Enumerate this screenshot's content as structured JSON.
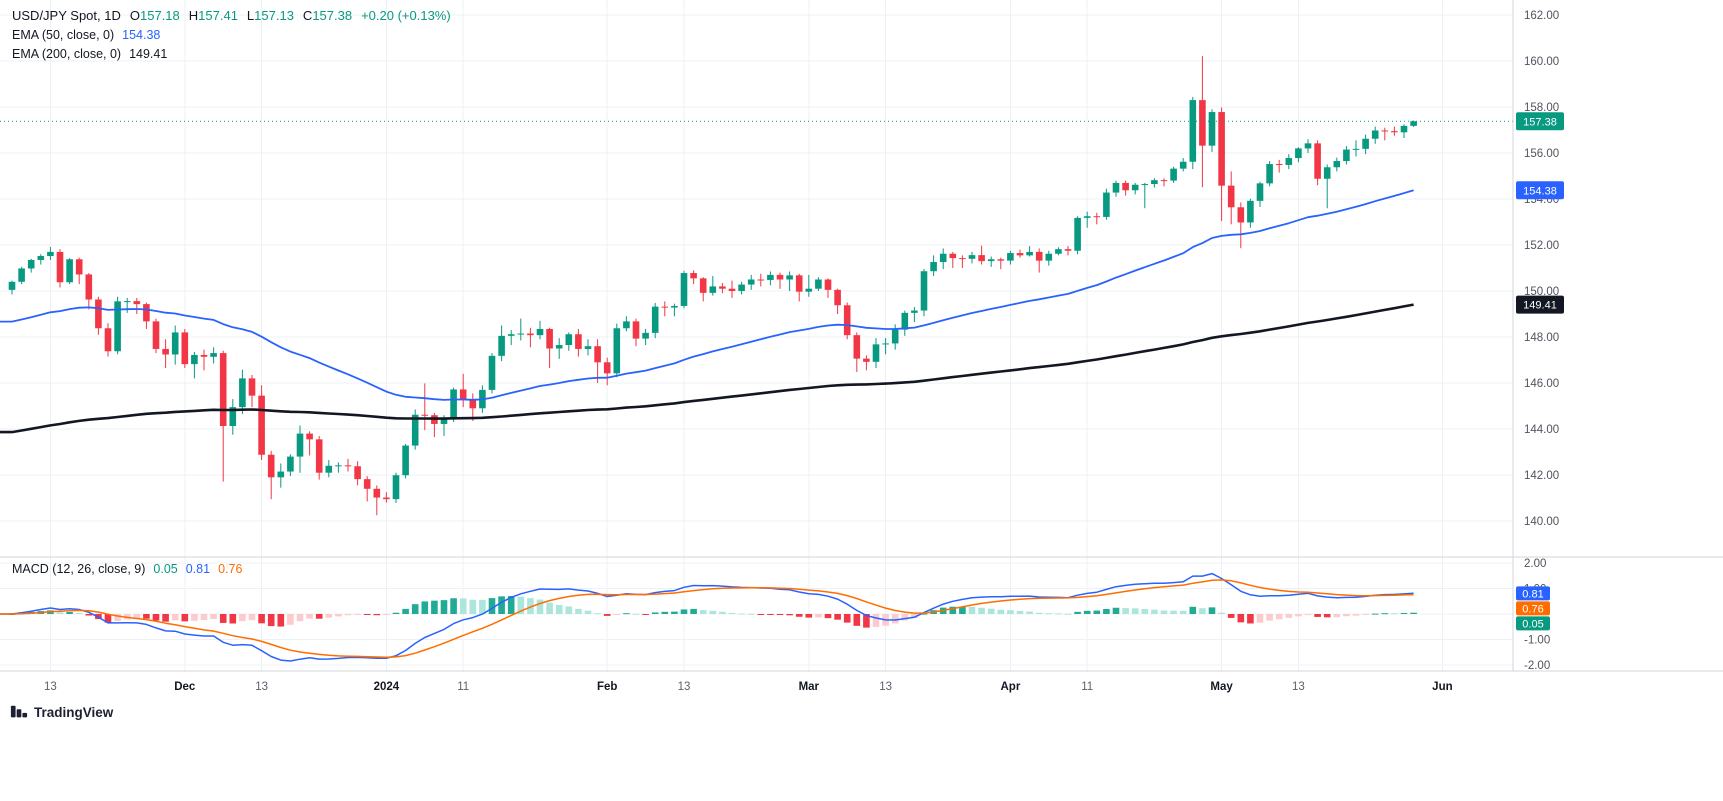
{
  "header": {
    "symbol": "USD/JPY Spot, 1D",
    "ohlc": {
      "open_label": "O",
      "open": "157.18",
      "high_label": "H",
      "high": "157.41",
      "low_label": "L",
      "low": "157.13",
      "close_label": "C",
      "close": "157.38",
      "change": "+0.20 (+0.13%)"
    },
    "ema50_label": "EMA (50, close, 0)",
    "ema50_value": "154.38",
    "ema200_label": "EMA (200, close, 0)",
    "ema200_value": "149.41"
  },
  "macd_legend": {
    "label": "MACD (12, 26, close, 9)",
    "hist": "0.05",
    "macd": "0.81",
    "signal": "0.76"
  },
  "footer": {
    "brand": "TradingView"
  },
  "colors": {
    "up": "#089981",
    "down": "#F23645",
    "ema50": "#2962FF",
    "ema200": "#131722",
    "macd": "#2962FF",
    "signal": "#FF6D00",
    "hist_up": "#22AB94",
    "hist_up_weak": "#ACE5DC",
    "hist_down": "#F23645",
    "hist_down_weak": "#FCCBCD",
    "grid": "#EDF0F4",
    "border": "#D1D4DC",
    "axis_text": "#50535E",
    "last_price": "#089981"
  },
  "chart_data": {
    "type": "candlestick",
    "symbol": "USD/JPY Spot",
    "interval": "1D",
    "title": "USD/JPY Spot, 1D with EMA(50), EMA(200) and MACD(12,26,9)",
    "price_ylim": [
      139.8,
      162.4
    ],
    "macd_ylim": [
      -2.3,
      2.3
    ],
    "grid": true,
    "price_axis_ticks": [
      162,
      160,
      158,
      156,
      154,
      152,
      150,
      148,
      146,
      144,
      142,
      140
    ],
    "macd_axis_ticks": [
      2,
      1,
      -1,
      -2
    ],
    "time_ticks": [
      {
        "i": 4,
        "label": "13"
      },
      {
        "i": 18,
        "label": "Dec",
        "major": true
      },
      {
        "i": 26,
        "label": "13"
      },
      {
        "i": 39,
        "label": "2024",
        "major": true
      },
      {
        "i": 47,
        "label": "11"
      },
      {
        "i": 62,
        "label": "Feb",
        "major": true
      },
      {
        "i": 70,
        "label": "13"
      },
      {
        "i": 83,
        "label": "Mar",
        "major": true
      },
      {
        "i": 91,
        "label": "13"
      },
      {
        "i": 104,
        "label": "Apr",
        "major": true
      },
      {
        "i": 112,
        "label": "11"
      },
      {
        "i": 126,
        "label": "May",
        "major": true
      },
      {
        "i": 134,
        "label": "13"
      },
      {
        "i": 149,
        "label": "Jun",
        "major": true
      }
    ],
    "candles": [
      [
        150.05,
        150.45,
        149.85,
        150.4
      ],
      [
        150.4,
        151.05,
        150.3,
        150.98
      ],
      [
        150.98,
        151.4,
        150.8,
        151.35
      ],
      [
        151.35,
        151.6,
        151.15,
        151.52
      ],
      [
        151.52,
        151.91,
        151.35,
        151.7
      ],
      [
        151.7,
        151.82,
        150.15,
        150.38
      ],
      [
        150.38,
        151.43,
        150.3,
        151.38
      ],
      [
        151.38,
        151.45,
        150.3,
        150.72
      ],
      [
        150.72,
        150.78,
        149.2,
        149.63
      ],
      [
        149.63,
        149.75,
        148.1,
        148.38
      ],
      [
        148.38,
        148.6,
        147.15,
        147.38
      ],
      [
        147.38,
        149.75,
        147.25,
        149.55
      ],
      [
        149.55,
        149.7,
        149.05,
        149.56
      ],
      [
        149.56,
        149.7,
        149.0,
        149.43
      ],
      [
        149.43,
        149.5,
        148.35,
        148.68
      ],
      [
        148.68,
        148.8,
        147.3,
        147.48
      ],
      [
        147.48,
        147.9,
        146.65,
        147.24
      ],
      [
        147.24,
        148.5,
        146.8,
        148.2
      ],
      [
        148.2,
        148.35,
        146.65,
        146.82
      ],
      [
        146.82,
        147.35,
        146.2,
        147.22
      ],
      [
        147.22,
        147.45,
        146.55,
        147.14
      ],
      [
        147.14,
        147.55,
        146.85,
        147.3
      ],
      [
        147.3,
        147.4,
        141.71,
        144.13
      ],
      [
        144.13,
        145.3,
        143.75,
        144.95
      ],
      [
        144.95,
        146.58,
        144.65,
        146.2
      ],
      [
        146.2,
        146.35,
        144.95,
        145.45
      ],
      [
        145.45,
        145.9,
        142.65,
        142.88
      ],
      [
        142.88,
        143.05,
        140.95,
        141.9
      ],
      [
        141.9,
        142.5,
        141.45,
        142.15
      ],
      [
        142.15,
        142.9,
        141.95,
        142.8
      ],
      [
        142.8,
        144.15,
        142.1,
        143.8
      ],
      [
        143.8,
        143.9,
        142.85,
        143.55
      ],
      [
        143.55,
        143.7,
        141.8,
        142.1
      ],
      [
        142.1,
        142.65,
        141.9,
        142.4
      ],
      [
        142.4,
        142.55,
        142.1,
        142.42
      ],
      [
        142.42,
        142.7,
        142.15,
        142.38
      ],
      [
        142.38,
        142.6,
        141.55,
        141.82
      ],
      [
        141.82,
        141.95,
        140.85,
        141.4
      ],
      [
        141.4,
        141.55,
        140.25,
        141.02
      ],
      [
        141.02,
        141.25,
        140.8,
        140.95
      ],
      [
        140.95,
        142.1,
        140.78,
        141.99
      ],
      [
        141.99,
        143.35,
        141.85,
        143.28
      ],
      [
        143.28,
        144.85,
        143.1,
        144.62
      ],
      [
        144.62,
        145.98,
        143.95,
        144.6
      ],
      [
        144.6,
        144.7,
        143.65,
        144.22
      ],
      [
        144.22,
        144.6,
        143.7,
        144.48
      ],
      [
        144.48,
        145.8,
        144.3,
        145.72
      ],
      [
        145.72,
        146.4,
        144.95,
        145.28
      ],
      [
        145.28,
        145.55,
        144.35,
        144.9
      ],
      [
        144.9,
        145.9,
        144.7,
        145.7
      ],
      [
        145.7,
        147.3,
        145.55,
        147.18
      ],
      [
        147.18,
        148.5,
        146.95,
        148.05
      ],
      [
        148.05,
        148.3,
        147.65,
        148.12
      ],
      [
        148.12,
        148.8,
        147.85,
        148.15
      ],
      [
        148.15,
        148.4,
        147.55,
        148.08
      ],
      [
        148.08,
        148.7,
        147.9,
        148.35
      ],
      [
        148.35,
        148.4,
        146.65,
        147.5
      ],
      [
        147.5,
        147.95,
        147.05,
        147.65
      ],
      [
        147.65,
        148.2,
        147.4,
        148.12
      ],
      [
        148.12,
        148.35,
        147.15,
        147.48
      ],
      [
        147.48,
        147.9,
        147.2,
        147.6
      ],
      [
        147.6,
        147.9,
        146.0,
        146.9
      ],
      [
        146.9,
        147.1,
        145.9,
        146.42
      ],
      [
        146.42,
        148.58,
        146.25,
        148.38
      ],
      [
        148.38,
        148.9,
        148.25,
        148.68
      ],
      [
        148.68,
        148.8,
        147.6,
        147.93
      ],
      [
        147.93,
        148.35,
        147.65,
        148.18
      ],
      [
        148.18,
        149.48,
        147.95,
        149.32
      ],
      [
        149.32,
        149.55,
        148.9,
        149.28
      ],
      [
        149.28,
        149.45,
        148.9,
        149.35
      ],
      [
        149.35,
        150.88,
        149.25,
        150.78
      ],
      [
        150.78,
        150.9,
        150.3,
        150.55
      ],
      [
        150.55,
        150.6,
        149.55,
        149.92
      ],
      [
        149.92,
        150.65,
        149.8,
        150.2
      ],
      [
        150.2,
        150.35,
        149.9,
        150.1
      ],
      [
        150.1,
        150.45,
        149.7,
        150.0
      ],
      [
        150.0,
        150.4,
        149.85,
        150.28
      ],
      [
        150.28,
        150.7,
        150.05,
        150.5
      ],
      [
        150.5,
        150.75,
        150.2,
        150.48
      ],
      [
        150.48,
        150.85,
        150.25,
        150.7
      ],
      [
        150.7,
        150.8,
        150.1,
        150.5
      ],
      [
        150.5,
        150.85,
        150.0,
        150.68
      ],
      [
        150.68,
        150.75,
        149.55,
        149.97
      ],
      [
        149.97,
        150.7,
        149.75,
        150.1
      ],
      [
        150.1,
        150.6,
        150.0,
        150.5
      ],
      [
        150.5,
        150.55,
        149.7,
        150.05
      ],
      [
        150.05,
        150.1,
        149.0,
        149.38
      ],
      [
        149.38,
        149.5,
        147.9,
        148.08
      ],
      [
        148.08,
        148.2,
        146.48,
        147.06
      ],
      [
        147.06,
        147.2,
        146.55,
        146.92
      ],
      [
        146.92,
        147.95,
        146.65,
        147.68
      ],
      [
        147.68,
        147.95,
        147.25,
        147.72
      ],
      [
        147.72,
        148.55,
        147.45,
        148.32
      ],
      [
        148.32,
        149.15,
        148.05,
        149.05
      ],
      [
        149.05,
        149.3,
        148.65,
        149.15
      ],
      [
        149.15,
        150.96,
        148.9,
        150.86
      ],
      [
        150.86,
        151.55,
        150.65,
        151.26
      ],
      [
        151.26,
        151.85,
        150.95,
        151.62
      ],
      [
        151.62,
        151.7,
        151.0,
        151.43
      ],
      [
        151.43,
        151.55,
        151.0,
        151.4
      ],
      [
        151.4,
        151.7,
        151.2,
        151.56
      ],
      [
        151.56,
        151.97,
        151.15,
        151.3
      ],
      [
        151.3,
        151.5,
        151.05,
        151.38
      ],
      [
        151.38,
        151.45,
        150.95,
        151.32
      ],
      [
        151.32,
        151.75,
        151.15,
        151.65
      ],
      [
        151.65,
        151.8,
        151.45,
        151.55
      ],
      [
        151.55,
        151.95,
        151.5,
        151.7
      ],
      [
        151.7,
        151.85,
        150.8,
        151.32
      ],
      [
        151.32,
        151.75,
        151.1,
        151.62
      ],
      [
        151.62,
        151.9,
        151.55,
        151.82
      ],
      [
        151.82,
        151.95,
        151.55,
        151.75
      ],
      [
        151.75,
        153.25,
        151.6,
        153.18
      ],
      [
        153.18,
        153.45,
        152.75,
        153.25
      ],
      [
        153.25,
        153.4,
        152.9,
        153.22
      ],
      [
        153.22,
        154.45,
        153.1,
        154.28
      ],
      [
        154.28,
        154.8,
        154.1,
        154.7
      ],
      [
        154.7,
        154.8,
        154.15,
        154.38
      ],
      [
        154.38,
        154.7,
        154.2,
        154.62
      ],
      [
        154.62,
        154.7,
        153.6,
        154.65
      ],
      [
        154.65,
        154.9,
        154.5,
        154.82
      ],
      [
        154.82,
        154.9,
        154.55,
        154.8
      ],
      [
        154.8,
        155.4,
        154.7,
        155.32
      ],
      [
        155.32,
        155.78,
        155.2,
        155.62
      ],
      [
        155.62,
        158.44,
        155.3,
        158.3
      ],
      [
        158.3,
        160.21,
        154.51,
        156.32
      ],
      [
        156.32,
        157.9,
        156.05,
        157.78
      ],
      [
        157.78,
        157.98,
        153.04,
        154.58
      ],
      [
        154.58,
        155.2,
        152.9,
        153.64
      ],
      [
        153.64,
        153.85,
        151.86,
        152.98
      ],
      [
        152.98,
        154.01,
        152.75,
        153.92
      ],
      [
        153.92,
        154.75,
        153.65,
        154.68
      ],
      [
        154.68,
        155.65,
        154.55,
        155.52
      ],
      [
        155.52,
        155.7,
        155.15,
        155.48
      ],
      [
        155.48,
        155.95,
        155.3,
        155.78
      ],
      [
        155.78,
        156.25,
        155.6,
        156.2
      ],
      [
        156.2,
        156.6,
        156.0,
        156.42
      ],
      [
        156.42,
        156.55,
        154.6,
        154.88
      ],
      [
        154.88,
        155.5,
        153.6,
        155.38
      ],
      [
        155.38,
        155.8,
        155.2,
        155.65
      ],
      [
        155.65,
        156.3,
        155.5,
        156.15
      ],
      [
        156.15,
        156.55,
        155.85,
        156.18
      ],
      [
        156.18,
        156.8,
        155.95,
        156.62
      ],
      [
        156.62,
        157.15,
        156.4,
        156.98
      ],
      [
        156.98,
        157.1,
        156.55,
        156.95
      ],
      [
        156.95,
        157.15,
        156.75,
        156.9
      ],
      [
        156.9,
        157.25,
        156.65,
        157.18
      ],
      [
        157.18,
        157.41,
        157.13,
        157.38
      ]
    ],
    "overlays": [
      {
        "name": "EMA 50",
        "period": 50,
        "seed": 148.6,
        "last": 154.38
      },
      {
        "name": "EMA 200",
        "period": 200,
        "seed": 143.8,
        "last": 149.41
      }
    ],
    "macd": {
      "fast": 12,
      "slow": 26,
      "smooth": 9,
      "last_macd": 0.81,
      "last_signal": 0.76,
      "last_hist": 0.05
    },
    "badges": {
      "last_price": "157.38",
      "ema50": "154.38",
      "ema200": "149.41",
      "macd": "0.81",
      "signal": "0.76",
      "hist": "0.05"
    }
  }
}
